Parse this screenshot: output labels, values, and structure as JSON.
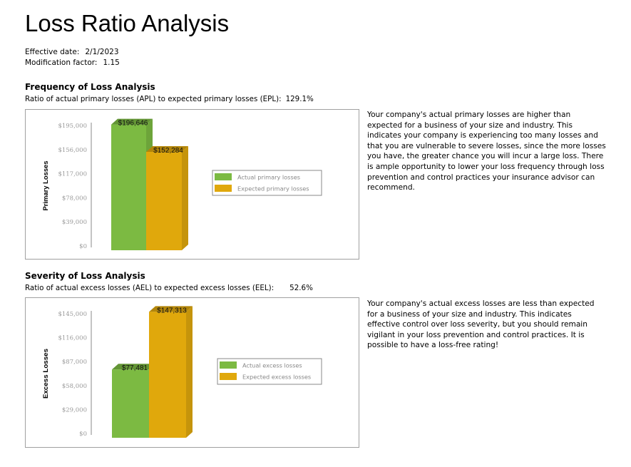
{
  "header": {
    "title": "Loss Ratio Analysis",
    "effective_date_label": "Effective date:",
    "effective_date": "2/1/2023",
    "modification_factor_label": "Modification factor:",
    "modification_factor": "1.15"
  },
  "frequency": {
    "title": "Frequency of Loss Analysis",
    "ratio_label": "Ratio of actual primary losses (APL) to expected primary losses (EPL):",
    "ratio_value": "129.1%",
    "description": "Your company's actual primary losses are higher than expected for a business of your size and industry. This indicates your company is experiencing too many losses and that you are vulnerable to severe losses, since the more losses you have, the greater chance you will incur a large loss. There is ample opportunity to lower your loss frequency through loss prevention and control practices your insurance advisor can recommend."
  },
  "severity": {
    "title": "Severity of Loss Analysis",
    "ratio_label": "Ratio of actual excess losses (AEL) to expected excess losses (EEL):",
    "ratio_value": "52.6%",
    "description": "Your company's actual excess losses are less than expected for a business of your size and industry. This indicates effective control over loss severity, but you should remain vigilant in your loss prevention and control practices. It is possible to have a loss-free rating!"
  },
  "colors": {
    "actual": "#7cba42",
    "expected": "#e0a80c"
  },
  "chart_data": [
    {
      "type": "bar",
      "style": "3d-column",
      "ylabel": "Primary Losses",
      "ylim": [
        0,
        195000
      ],
      "yticks": [
        "$0",
        "$39,000",
        "$78,000",
        "$117,000",
        "$156,000",
        "$195,000"
      ],
      "ytick_values": [
        0,
        39000,
        78000,
        117000,
        156000,
        195000
      ],
      "grid": false,
      "legend": "right",
      "series": [
        {
          "name": "Actual primary losses",
          "values": [
            196646
          ],
          "label": "$196,646"
        },
        {
          "name": "Expected primary losses",
          "values": [
            152284
          ],
          "label": "$152,284"
        }
      ]
    },
    {
      "type": "bar",
      "style": "3d-column",
      "ylabel": "Excess Losses",
      "ylim": [
        0,
        145000
      ],
      "yticks": [
        "$0",
        "$29,000",
        "$58,000",
        "$87,000",
        "$116,000",
        "$145,000"
      ],
      "ytick_values": [
        0,
        29000,
        58000,
        87000,
        116000,
        145000
      ],
      "grid": false,
      "legend": "right",
      "series": [
        {
          "name": "Actual excess losses",
          "values": [
            77481
          ],
          "label": "$77,481"
        },
        {
          "name": "Expected excess losses",
          "values": [
            147313
          ],
          "label": "$147,313"
        }
      ]
    }
  ]
}
